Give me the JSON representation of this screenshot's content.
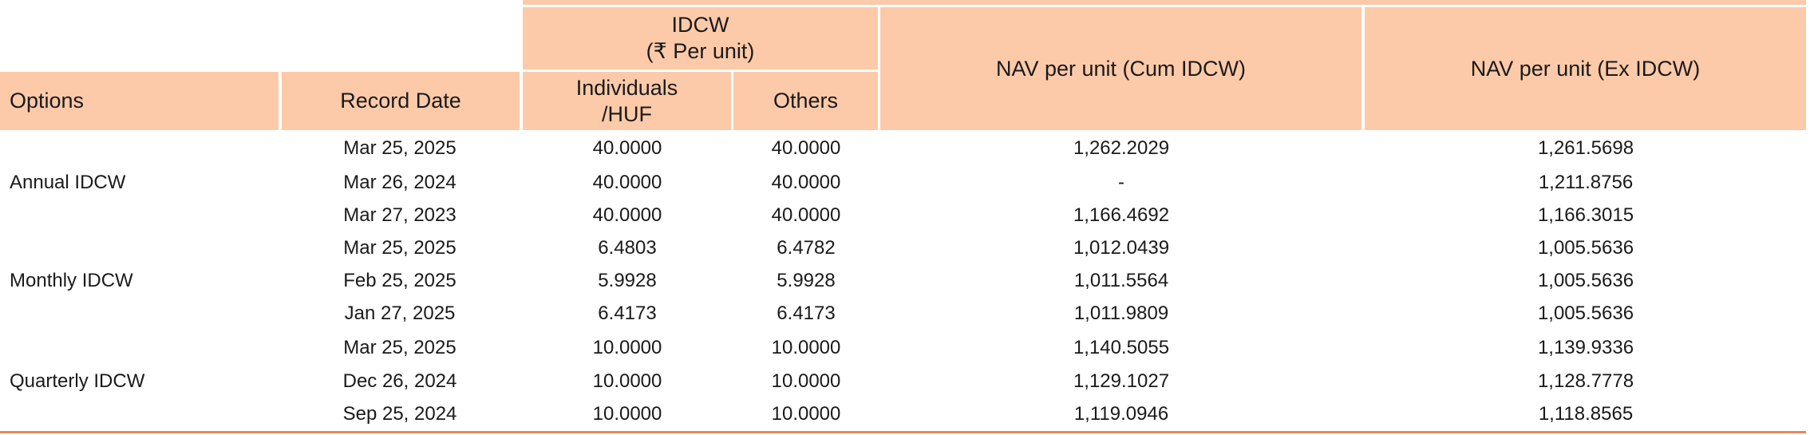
{
  "table": {
    "headers": {
      "options": "Options",
      "record_date": "Record Date",
      "idcw_group": "IDCW",
      "idcw_unit": "(₹ Per unit)",
      "individuals": "Individuals",
      "huf": "/HUF",
      "others": "Others",
      "nav_cum": "NAV per unit (Cum IDCW)",
      "nav_ex": "NAV per unit (Ex IDCW)"
    },
    "groups": [
      {
        "option": "Annual IDCW",
        "rows": [
          {
            "date": "Mar 25, 2025",
            "individuals": "40.0000",
            "others": "40.0000",
            "nav_cum": "1,262.2029",
            "nav_ex": "1,261.5698"
          },
          {
            "date": "Mar 26, 2024",
            "individuals": "40.0000",
            "others": "40.0000",
            "nav_cum": "-",
            "nav_ex": "1,211.8756"
          },
          {
            "date": "Mar 27, 2023",
            "individuals": "40.0000",
            "others": "40.0000",
            "nav_cum": "1,166.4692",
            "nav_ex": "1,166.3015"
          }
        ]
      },
      {
        "option": "Monthly IDCW",
        "rows": [
          {
            "date": "Mar 25, 2025",
            "individuals": "6.4803",
            "others": "6.4782",
            "nav_cum": "1,012.0439",
            "nav_ex": "1,005.5636"
          },
          {
            "date": "Feb 25, 2025",
            "individuals": "5.9928",
            "others": "5.9928",
            "nav_cum": "1,011.5564",
            "nav_ex": "1,005.5636"
          },
          {
            "date": "Jan 27, 2025",
            "individuals": "6.4173",
            "others": "6.4173",
            "nav_cum": "1,011.9809",
            "nav_ex": "1,005.5636"
          }
        ]
      },
      {
        "option": "Quarterly IDCW",
        "rows": [
          {
            "date": "Mar 25, 2025",
            "individuals": "10.0000",
            "others": "10.0000",
            "nav_cum": "1,140.5055",
            "nav_ex": "1,139.9336"
          },
          {
            "date": "Dec 26, 2024",
            "individuals": "10.0000",
            "others": "10.0000",
            "nav_cum": "1,129.1027",
            "nav_ex": "1,128.7778"
          },
          {
            "date": "Sep 25, 2024",
            "individuals": "10.0000",
            "others": "10.0000",
            "nav_cum": "1,119.0946",
            "nav_ex": "1,118.8565"
          }
        ]
      }
    ],
    "colors": {
      "header_fill": "#fdcaa9",
      "bottom_rule": "#e8885a"
    }
  }
}
